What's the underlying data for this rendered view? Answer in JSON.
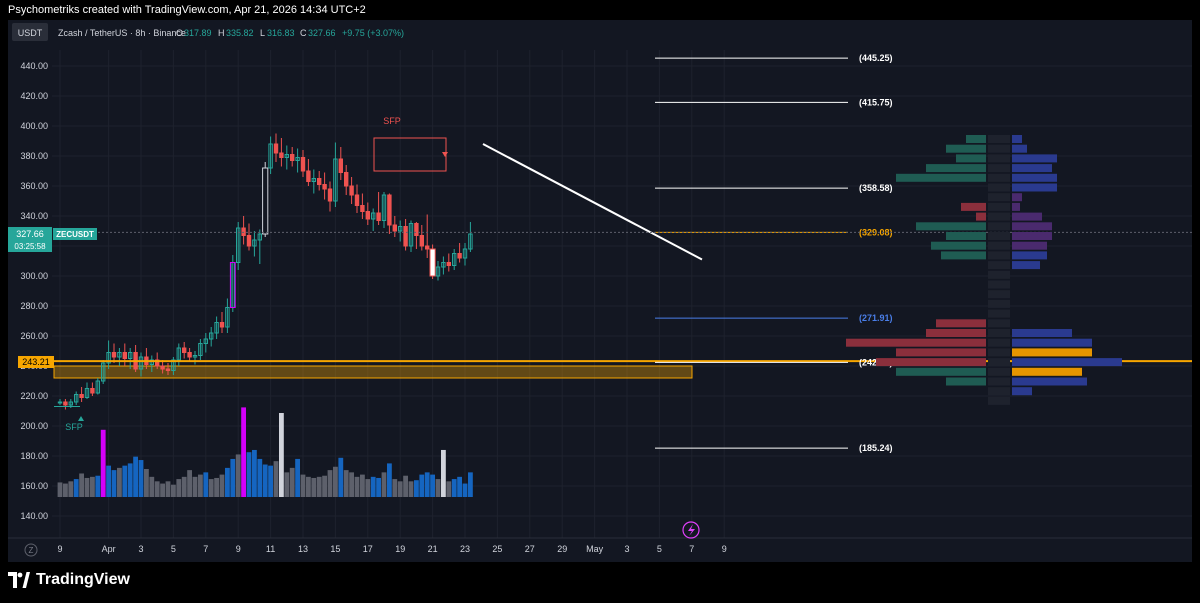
{
  "header": {
    "attribution": "Psychometriks created with TradingView.com, Apr 21, 2026 14:34 UTC+2"
  },
  "symbol_bar": {
    "currency_button": "USDT",
    "title": "Zcash / TetherUS · 8h · Binance",
    "o_label": "O",
    "o_value": "317.89",
    "h_label": "H",
    "h_value": "335.82",
    "l_label": "L",
    "l_value": "316.83",
    "c_label": "C",
    "c_value": "327.66",
    "change": "+9.75 (+3.07%)"
  },
  "price_tags": {
    "current_price": "327.66",
    "countdown": "03:25:58",
    "symbol": "ZECUSDT",
    "level_tag": "243.21"
  },
  "colors": {
    "bull": "#26a69a",
    "bear": "#ef5350",
    "accent_orange": "#f7a600",
    "blue_line": "#2962ff",
    "magenta": "#d500f9",
    "volume_blue": "#1565c0",
    "volume_gray": "#5d606b"
  },
  "annotations": {
    "sfp_top": "SFP",
    "sfp_bottom": "SFP",
    "levels": [
      {
        "label": "(445.25)",
        "value": 445.25,
        "color": "#ffffff"
      },
      {
        "label": "(415.75)",
        "value": 415.75,
        "color": "#ffffff"
      },
      {
        "label": "(358.58)",
        "value": 358.58,
        "color": "#ffffff"
      },
      {
        "label": "(329.08)",
        "value": 329.08,
        "color": "#f7a600"
      },
      {
        "label": "(271.91)",
        "value": 271.91,
        "color": "#4a7ee8"
      },
      {
        "label": "(242.41)",
        "value": 242.41,
        "color": "#ffffff"
      },
      {
        "label": "(185.24)",
        "value": 185.24,
        "color": "#ffffff"
      }
    ]
  },
  "icons": {
    "lightning": "lightning-icon",
    "logo": "tradingview-logo-icon"
  },
  "footer": {
    "brand": "TradingView",
    "scale_letter": "Z"
  },
  "chart_data": {
    "type": "candlestick",
    "symbol": "ZECUSDT",
    "timeframe": "8h",
    "exchange": "Binance",
    "y_axis": {
      "ylim": [
        130,
        452
      ],
      "ticks": [
        440,
        420,
        400,
        380,
        360,
        340,
        320,
        300,
        280,
        260,
        240,
        220,
        200,
        180,
        160,
        140
      ],
      "tick_labels": [
        "440.00",
        "420.00",
        "400.00",
        "380.00",
        "360.00",
        "340.00",
        "320.00",
        "300.00",
        "280.00",
        "260.00",
        "240.00",
        "220.00",
        "200.00",
        "180.00",
        "160.00",
        "140.00"
      ]
    },
    "x_axis": {
      "tick_labels": [
        "9",
        "Apr",
        "3",
        "5",
        "7",
        "9",
        "11",
        "13",
        "15",
        "17",
        "19",
        "21",
        "23",
        "25",
        "27",
        "29",
        "May",
        "3",
        "5",
        "7",
        "9"
      ],
      "tick_index": [
        0,
        9,
        15,
        21,
        27,
        33,
        39,
        45,
        51,
        57,
        63,
        69,
        75,
        81,
        87,
        93,
        99,
        105,
        111,
        117,
        123
      ]
    },
    "candles": [
      [
        216,
        218,
        214,
        216
      ],
      [
        216,
        218,
        211,
        214
      ],
      [
        214,
        218,
        212,
        216
      ],
      [
        216,
        223,
        214,
        221
      ],
      [
        221,
        226,
        216,
        219
      ],
      [
        219,
        229,
        218,
        225
      ],
      [
        225,
        229,
        220,
        222
      ],
      [
        222,
        232,
        221,
        230
      ],
      [
        230,
        244,
        228,
        242
      ],
      [
        242,
        257,
        238,
        249
      ],
      [
        249,
        255,
        242,
        246
      ],
      [
        246,
        252,
        240,
        249
      ],
      [
        249,
        255,
        240,
        245
      ],
      [
        245,
        252,
        238,
        249
      ],
      [
        249,
        254,
        236,
        238
      ],
      [
        238,
        249,
        233,
        246
      ],
      [
        246,
        252,
        238,
        241
      ],
      [
        241,
        247,
        236,
        244
      ],
      [
        244,
        249,
        238,
        240
      ],
      [
        240,
        244,
        235,
        238
      ],
      [
        238,
        242,
        234,
        237
      ],
      [
        237,
        246,
        234,
        244
      ],
      [
        244,
        255,
        240,
        252
      ],
      [
        252,
        256,
        245,
        249
      ],
      [
        249,
        252,
        243,
        246
      ],
      [
        246,
        250,
        241,
        247
      ],
      [
        247,
        258,
        244,
        255
      ],
      [
        255,
        262,
        249,
        258
      ],
      [
        258,
        266,
        253,
        262
      ],
      [
        262,
        273,
        258,
        269
      ],
      [
        269,
        276,
        262,
        266
      ],
      [
        266,
        285,
        262,
        279
      ],
      [
        279,
        314,
        276,
        309
      ],
      [
        309,
        336,
        304,
        332
      ],
      [
        332,
        340,
        321,
        327
      ],
      [
        327,
        335,
        317,
        320
      ],
      [
        320,
        330,
        313,
        324
      ],
      [
        324,
        331,
        308,
        328
      ],
      [
        328,
        376,
        326,
        372
      ],
      [
        372,
        393,
        368,
        388
      ],
      [
        388,
        395,
        376,
        382
      ],
      [
        382,
        392,
        373,
        379
      ],
      [
        379,
        387,
        371,
        381
      ],
      [
        381,
        386,
        373,
        377
      ],
      [
        377,
        385,
        369,
        379
      ],
      [
        379,
        384,
        366,
        370
      ],
      [
        370,
        378,
        360,
        363
      ],
      [
        363,
        371,
        355,
        365
      ],
      [
        365,
        370,
        357,
        361
      ],
      [
        361,
        369,
        351,
        358
      ],
      [
        358,
        363,
        343,
        350
      ],
      [
        350,
        389,
        346,
        378
      ],
      [
        378,
        386,
        364,
        369
      ],
      [
        369,
        374,
        354,
        360
      ],
      [
        360,
        366,
        348,
        354
      ],
      [
        354,
        361,
        342,
        347
      ],
      [
        347,
        355,
        338,
        343
      ],
      [
        343,
        349,
        334,
        338
      ],
      [
        338,
        345,
        330,
        342
      ],
      [
        342,
        356,
        334,
        337
      ],
      [
        337,
        356,
        332,
        354
      ],
      [
        354,
        355,
        328,
        334
      ],
      [
        334,
        340,
        326,
        330
      ],
      [
        330,
        337,
        323,
        333
      ],
      [
        333,
        338,
        317,
        320
      ],
      [
        320,
        337,
        316,
        335
      ],
      [
        335,
        336,
        318,
        327
      ],
      [
        327,
        334,
        317,
        320
      ],
      [
        320,
        341,
        312,
        318
      ],
      [
        318,
        321,
        298,
        300
      ],
      [
        300,
        310,
        297,
        306
      ],
      [
        306,
        313,
        301,
        309
      ],
      [
        309,
        315,
        303,
        307
      ],
      [
        307,
        318,
        304,
        315
      ],
      [
        315,
        322,
        309,
        312
      ],
      [
        312,
        322,
        307,
        318
      ],
      [
        318,
        336,
        316,
        328
      ]
    ],
    "volume": [
      [
        13,
        "g"
      ],
      [
        12,
        "g"
      ],
      [
        14,
        "g"
      ],
      [
        16,
        "b"
      ],
      [
        21,
        "g"
      ],
      [
        17,
        "g"
      ],
      [
        18,
        "g"
      ],
      [
        19,
        "b"
      ],
      [
        60,
        "m"
      ],
      [
        28,
        "b"
      ],
      [
        24,
        "b"
      ],
      [
        26,
        "g"
      ],
      [
        28,
        "b"
      ],
      [
        30,
        "b"
      ],
      [
        36,
        "b"
      ],
      [
        33,
        "b"
      ],
      [
        25,
        "g"
      ],
      [
        18,
        "g"
      ],
      [
        14,
        "g"
      ],
      [
        12,
        "g"
      ],
      [
        14,
        "g"
      ],
      [
        11,
        "g"
      ],
      [
        16,
        "g"
      ],
      [
        18,
        "g"
      ],
      [
        24,
        "g"
      ],
      [
        18,
        "g"
      ],
      [
        20,
        "g"
      ],
      [
        22,
        "b"
      ],
      [
        16,
        "g"
      ],
      [
        17,
        "g"
      ],
      [
        20,
        "g"
      ],
      [
        26,
        "b"
      ],
      [
        34,
        "b"
      ],
      [
        38,
        "g"
      ],
      [
        80,
        "m"
      ],
      [
        40,
        "b"
      ],
      [
        42,
        "b"
      ],
      [
        34,
        "b"
      ],
      [
        29,
        "b"
      ],
      [
        28,
        "b"
      ],
      [
        32,
        "g"
      ],
      [
        75,
        "w"
      ],
      [
        22,
        "g"
      ],
      [
        26,
        "g"
      ],
      [
        34,
        "b"
      ],
      [
        20,
        "g"
      ],
      [
        18,
        "g"
      ],
      [
        17,
        "g"
      ],
      [
        18,
        "g"
      ],
      [
        19,
        "g"
      ],
      [
        24,
        "g"
      ],
      [
        27,
        "g"
      ],
      [
        35,
        "b"
      ],
      [
        24,
        "g"
      ],
      [
        22,
        "g"
      ],
      [
        18,
        "g"
      ],
      [
        20,
        "g"
      ],
      [
        16,
        "g"
      ],
      [
        18,
        "b"
      ],
      [
        17,
        "b"
      ],
      [
        22,
        "g"
      ],
      [
        30,
        "b"
      ],
      [
        16,
        "g"
      ],
      [
        14,
        "g"
      ],
      [
        19,
        "g"
      ],
      [
        14,
        "g"
      ],
      [
        15,
        "b"
      ],
      [
        20,
        "b"
      ],
      [
        22,
        "b"
      ],
      [
        20,
        "b"
      ],
      [
        16,
        "g"
      ],
      [
        42,
        "w"
      ],
      [
        14,
        "g"
      ],
      [
        16,
        "b"
      ],
      [
        18,
        "b"
      ],
      [
        12,
        "b"
      ],
      [
        22,
        "b"
      ]
    ],
    "volume_ticks": [
      200,
      180,
      160,
      140
    ],
    "trendline": {
      "start": [
        33,
        388
      ],
      "end": [
        39,
        317
      ]
    },
    "zone": {
      "from": 232,
      "to": 240
    }
  }
}
